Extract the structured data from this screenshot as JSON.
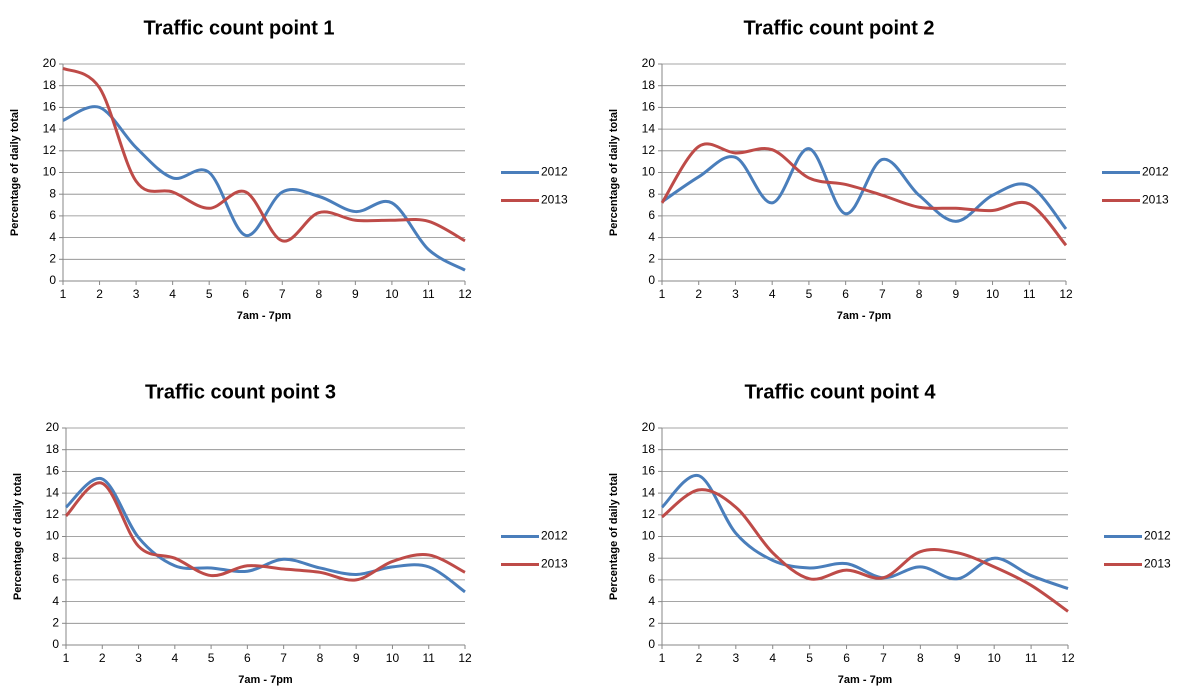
{
  "chart_data": [
    {
      "type": "line",
      "title": "Traffic count point 1",
      "xlabel": "7am - 7pm",
      "ylabel": "Percentage of daily total",
      "x": [
        1,
        2,
        3,
        4,
        5,
        6,
        7,
        8,
        9,
        10,
        11,
        12
      ],
      "xlim": [
        1,
        12
      ],
      "xticks": [
        1,
        2,
        3,
        4,
        5,
        6,
        7,
        8,
        9,
        10,
        11,
        12
      ],
      "ylim": [
        0,
        20
      ],
      "yticks": [
        0,
        2,
        4,
        6,
        8,
        10,
        12,
        14,
        16,
        18,
        20
      ],
      "grid": true,
      "smooth": true,
      "legend": "right",
      "series": [
        {
          "name": "2012",
          "color": "#4a7ebb",
          "values": [
            14.8,
            16,
            12.3,
            9.5,
            10,
            4.2,
            8.2,
            7.8,
            6.4,
            7.2,
            2.9,
            1.0
          ]
        },
        {
          "name": "2013",
          "color": "#be4b48",
          "values": [
            19.6,
            17.8,
            9.2,
            8.2,
            6.7,
            8.2,
            3.7,
            6.3,
            5.6,
            5.6,
            5.5,
            3.7
          ]
        }
      ]
    },
    {
      "type": "line",
      "title": "Traffic count point 2",
      "xlabel": "7am - 7pm",
      "ylabel": "Percentage of daily total",
      "x": [
        1,
        2,
        3,
        4,
        5,
        6,
        7,
        8,
        9,
        10,
        11,
        12
      ],
      "xlim": [
        1,
        12
      ],
      "xticks": [
        1,
        2,
        3,
        4,
        5,
        6,
        7,
        8,
        9,
        10,
        11,
        12
      ],
      "ylim": [
        0,
        20
      ],
      "yticks": [
        0,
        2,
        4,
        6,
        8,
        10,
        12,
        14,
        16,
        18,
        20
      ],
      "grid": true,
      "smooth": true,
      "legend": "right",
      "series": [
        {
          "name": "2012",
          "color": "#4a7ebb",
          "values": [
            7.3,
            9.6,
            11.4,
            7.2,
            12.2,
            6.2,
            11.2,
            7.9,
            5.5,
            7.9,
            8.8,
            4.8
          ]
        },
        {
          "name": "2013",
          "color": "#be4b48",
          "values": [
            7.2,
            12.4,
            11.8,
            12.1,
            9.5,
            8.9,
            7.9,
            6.8,
            6.7,
            6.5,
            7.1,
            3.3
          ]
        }
      ]
    },
    {
      "type": "line",
      "title": "Traffic count point 3",
      "xlabel": "7am - 7pm",
      "ylabel": "Percentage of daily total",
      "x": [
        1,
        2,
        3,
        4,
        5,
        6,
        7,
        8,
        9,
        10,
        11,
        12
      ],
      "xlim": [
        1,
        12
      ],
      "xticks": [
        1,
        2,
        3,
        4,
        5,
        6,
        7,
        8,
        9,
        10,
        11,
        12
      ],
      "ylim": [
        0,
        20
      ],
      "yticks": [
        0,
        2,
        4,
        6,
        8,
        10,
        12,
        14,
        16,
        18,
        20
      ],
      "grid": true,
      "smooth": true,
      "legend": "right",
      "series": [
        {
          "name": "2012",
          "color": "#4a7ebb",
          "values": [
            12.7,
            15.3,
            9.9,
            7.3,
            7.1,
            6.8,
            7.9,
            7.1,
            6.5,
            7.2,
            7.2,
            4.9
          ]
        },
        {
          "name": "2013",
          "color": "#be4b48",
          "values": [
            11.9,
            14.9,
            9.1,
            8.0,
            6.4,
            7.3,
            7.0,
            6.7,
            6.0,
            7.7,
            8.3,
            6.7
          ]
        }
      ]
    },
    {
      "type": "line",
      "title": "Traffic count point 4",
      "xlabel": "7am - 7pm",
      "ylabel": "Percentage of daily total",
      "x": [
        1,
        2,
        3,
        4,
        5,
        6,
        7,
        8,
        9,
        10,
        11,
        12
      ],
      "xlim": [
        1,
        12
      ],
      "xticks": [
        1,
        2,
        3,
        4,
        5,
        6,
        7,
        8,
        9,
        10,
        11,
        12
      ],
      "ylim": [
        0,
        20
      ],
      "yticks": [
        0,
        2,
        4,
        6,
        8,
        10,
        12,
        14,
        16,
        18,
        20
      ],
      "grid": true,
      "smooth": true,
      "legend": "right",
      "series": [
        {
          "name": "2012",
          "color": "#4a7ebb",
          "values": [
            12.7,
            15.6,
            10.3,
            7.8,
            7.1,
            7.5,
            6.2,
            7.2,
            6.1,
            8.0,
            6.4,
            5.2
          ]
        },
        {
          "name": "2013",
          "color": "#be4b48",
          "values": [
            11.8,
            14.3,
            12.7,
            8.5,
            6.1,
            6.9,
            6.2,
            8.6,
            8.5,
            7.2,
            5.5,
            3.1
          ]
        }
      ]
    }
  ]
}
